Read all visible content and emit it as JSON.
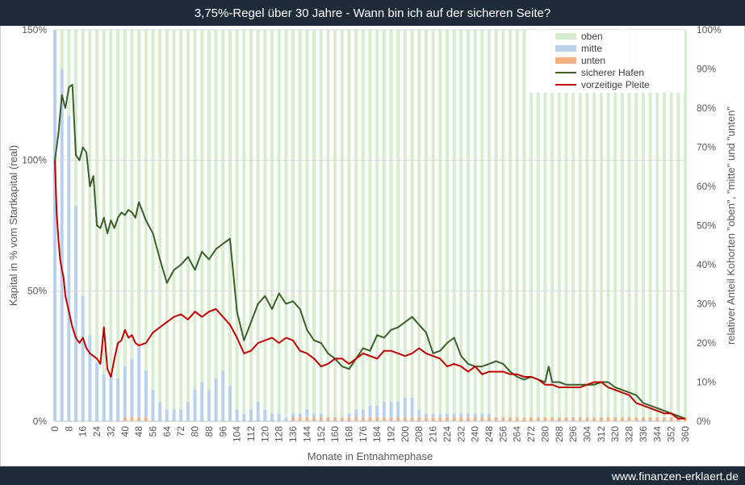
{
  "header": {
    "title": "3,75%-Regel über 30 Jahre - Wann bin ich auf der sicheren Seite?"
  },
  "footer": {
    "url": "www.finanzen-erklaert.de"
  },
  "colors": {
    "oben": "#d8ecd0",
    "mitte": "#b8d0ea",
    "unten": "#f4b183",
    "sicherer_hafen": "#3b5e2b",
    "vorzeitige_pleite": "#c00000",
    "grid": "#d9d9d9",
    "frame": "#1f2b38"
  },
  "chart_data": {
    "type": "line",
    "title": "3,75%-Regel über 30 Jahre - Wann bin ich auf der sicheren Seite?",
    "xlabel": "Monate in Entnahmephase",
    "ylabel": "Kapital in % vom Startkapital (real)",
    "y2label": "relativer Anteil Kohorten \"oben\", \"mitte\" und \"unten\"",
    "xlim": [
      0,
      360
    ],
    "ylim": [
      0,
      150
    ],
    "y2lim": [
      0,
      100
    ],
    "x_ticks": [
      0,
      8,
      16,
      24,
      32,
      40,
      48,
      56,
      64,
      72,
      80,
      88,
      96,
      104,
      112,
      120,
      128,
      136,
      144,
      152,
      160,
      168,
      176,
      184,
      192,
      200,
      208,
      216,
      224,
      232,
      240,
      248,
      256,
      264,
      272,
      280,
      288,
      296,
      304,
      312,
      320,
      328,
      336,
      344,
      352,
      360
    ],
    "y_ticks": [
      "0%",
      "50%",
      "100%",
      "150%"
    ],
    "y2_ticks": [
      "0%",
      "10%",
      "20%",
      "30%",
      "40%",
      "50%",
      "60%",
      "70%",
      "80%",
      "90%",
      "100%"
    ],
    "grid": true,
    "legend_position": "top-right",
    "legend": [
      "oben",
      "mitte",
      "unten",
      "sicherer Hafen",
      "vorzeitige Pleite"
    ],
    "bar_series": {
      "x": [
        0,
        4,
        8,
        12,
        16,
        20,
        24,
        28,
        32,
        36,
        40,
        44,
        48,
        52,
        56,
        60,
        64,
        68,
        72,
        76,
        80,
        84,
        88,
        92,
        96,
        100,
        104,
        108,
        112,
        116,
        120,
        124,
        128,
        132,
        136,
        140,
        144,
        148,
        152,
        156,
        160,
        164,
        168,
        172,
        176,
        180,
        184,
        188,
        192,
        196,
        200,
        204,
        208,
        212,
        216,
        220,
        224,
        228,
        232,
        236,
        240,
        244,
        248,
        252,
        256,
        260,
        264,
        268,
        272,
        276,
        280,
        284,
        288,
        292,
        296,
        300,
        304,
        308,
        312,
        316,
        320,
        324,
        328,
        332,
        336,
        340,
        344,
        348,
        352,
        356,
        360
      ],
      "mitte_pct": [
        100,
        90,
        78,
        55,
        32,
        22,
        15,
        12,
        12,
        11,
        13,
        15,
        18,
        12,
        8,
        5,
        3,
        3,
        3,
        5,
        8,
        10,
        8,
        11,
        13,
        9,
        3,
        2,
        3,
        5,
        3,
        2,
        2,
        1,
        1,
        1,
        2,
        1,
        1,
        0,
        0,
        0,
        1,
        2,
        2,
        3,
        3,
        4,
        4,
        4,
        5,
        5,
        2,
        1,
        1,
        1,
        1,
        1,
        1,
        1,
        1,
        1,
        1,
        0,
        0,
        0,
        0,
        0,
        0,
        0,
        0,
        0,
        0,
        0,
        0,
        0,
        0,
        0,
        0,
        0,
        0,
        0,
        0,
        0,
        0,
        0,
        0,
        0,
        0,
        0,
        0
      ],
      "unten_pct": [
        0,
        0,
        0,
        0,
        0,
        0,
        0,
        0,
        0,
        0,
        1,
        1,
        1,
        1,
        0,
        0,
        0,
        0,
        0,
        0,
        0,
        0,
        0,
        0,
        0,
        0,
        0,
        0,
        0,
        0,
        0,
        0,
        0,
        0,
        1,
        1,
        1,
        1,
        1,
        1,
        1,
        1,
        1,
        1,
        1,
        1,
        1,
        1,
        1,
        1,
        1,
        1,
        1,
        1,
        1,
        1,
        1,
        1,
        1,
        1,
        1,
        1,
        1,
        1,
        1,
        1,
        1,
        1,
        1,
        1,
        1,
        1,
        1,
        1,
        1,
        1,
        1,
        1,
        1,
        1,
        1,
        1,
        1,
        1,
        1,
        1,
        1,
        1,
        1,
        1,
        1
      ],
      "oben_pct": [
        0,
        10,
        22,
        45,
        68,
        78,
        85,
        88,
        88,
        89,
        86,
        84,
        81,
        87,
        92,
        95,
        97,
        97,
        97,
        95,
        92,
        90,
        92,
        89,
        87,
        91,
        97,
        98,
        97,
        95,
        97,
        98,
        98,
        99,
        98,
        98,
        97,
        98,
        98,
        99,
        99,
        99,
        98,
        97,
        97,
        96,
        96,
        95,
        95,
        95,
        94,
        94,
        97,
        98,
        98,
        98,
        98,
        98,
        98,
        98,
        98,
        98,
        98,
        99,
        99,
        99,
        99,
        99,
        99,
        99,
        99,
        99,
        99,
        99,
        99,
        99,
        99,
        99,
        99,
        99,
        99,
        99,
        99,
        99,
        99,
        99,
        99,
        99,
        99,
        99,
        99
      ]
    },
    "series": [
      {
        "name": "sicherer Hafen",
        "axis": "left",
        "x": [
          0,
          2,
          4,
          6,
          8,
          10,
          12,
          14,
          16,
          18,
          20,
          22,
          24,
          26,
          28,
          30,
          32,
          34,
          36,
          38,
          40,
          42,
          44,
          46,
          48,
          52,
          56,
          60,
          64,
          68,
          72,
          76,
          80,
          84,
          88,
          92,
          96,
          100,
          104,
          108,
          112,
          116,
          120,
          124,
          128,
          132,
          136,
          140,
          144,
          148,
          152,
          156,
          160,
          164,
          168,
          172,
          176,
          180,
          184,
          188,
          192,
          196,
          200,
          204,
          208,
          212,
          216,
          220,
          224,
          228,
          232,
          236,
          240,
          244,
          248,
          252,
          256,
          260,
          264,
          268,
          272,
          276,
          280,
          282,
          284,
          288,
          292,
          296,
          300,
          304,
          308,
          312,
          316,
          320,
          324,
          328,
          332,
          336,
          340,
          344,
          348,
          352,
          356,
          360
        ],
        "y": [
          100,
          110,
          125,
          120,
          128,
          129,
          102,
          100,
          105,
          103,
          90,
          94,
          75,
          74,
          78,
          72,
          77,
          74,
          78,
          80,
          79,
          81,
          80,
          78,
          84,
          77,
          72,
          62,
          53,
          58,
          60,
          63,
          58,
          65,
          62,
          66,
          68,
          70,
          42,
          31,
          38,
          45,
          48,
          43,
          49,
          45,
          46,
          43,
          35,
          31,
          30,
          26,
          24,
          21,
          20,
          24,
          28,
          27,
          33,
          32,
          35,
          36,
          38,
          40,
          37,
          34,
          26,
          27,
          30,
          32,
          25,
          22,
          21,
          21,
          22,
          23,
          22,
          19,
          17,
          16,
          17,
          16,
          15,
          21,
          15,
          15,
          14,
          14,
          14,
          14,
          14,
          15,
          15,
          13,
          12,
          11,
          10,
          7,
          6,
          5,
          4,
          3,
          2,
          1
        ],
        "color": "#3b5e2b"
      },
      {
        "name": "vorzeitige Pleite",
        "axis": "left",
        "x": [
          0,
          1,
          2,
          3,
          4,
          5,
          6,
          8,
          10,
          12,
          14,
          16,
          18,
          20,
          22,
          24,
          26,
          28,
          30,
          32,
          34,
          36,
          38,
          40,
          42,
          44,
          46,
          48,
          52,
          56,
          60,
          64,
          68,
          72,
          76,
          80,
          84,
          88,
          92,
          96,
          100,
          104,
          108,
          112,
          116,
          120,
          124,
          128,
          132,
          136,
          140,
          144,
          148,
          152,
          156,
          160,
          164,
          168,
          172,
          176,
          180,
          184,
          188,
          192,
          196,
          200,
          204,
          208,
          212,
          216,
          220,
          224,
          228,
          232,
          236,
          240,
          244,
          248,
          252,
          256,
          260,
          264,
          268,
          272,
          276,
          280,
          284,
          288,
          292,
          296,
          300,
          304,
          308,
          312,
          316,
          320,
          324,
          328,
          332,
          336,
          340,
          344,
          348,
          352,
          356,
          360
        ],
        "y": [
          100,
          80,
          70,
          62,
          58,
          55,
          48,
          42,
          36,
          32,
          30,
          32,
          28,
          26,
          25,
          24,
          22,
          36,
          20,
          17,
          24,
          30,
          31,
          35,
          32,
          33,
          30,
          29,
          30,
          34,
          36,
          38,
          40,
          41,
          39,
          42,
          40,
          42,
          43,
          40,
          37,
          32,
          26,
          27,
          30,
          31,
          32,
          30,
          32,
          31,
          27,
          26,
          24,
          21,
          22,
          24,
          24,
          22,
          24,
          26,
          25,
          24,
          27,
          27,
          26,
          25,
          26,
          28,
          26,
          25,
          24,
          21,
          22,
          21,
          19,
          21,
          18,
          19,
          19,
          19,
          18,
          18,
          17,
          17,
          16,
          14,
          14,
          13,
          13,
          13,
          13,
          14,
          15,
          15,
          13,
          12,
          11,
          10,
          7,
          6,
          5,
          4,
          3,
          3,
          1,
          1
        ],
        "color": "#c00000"
      }
    ]
  }
}
